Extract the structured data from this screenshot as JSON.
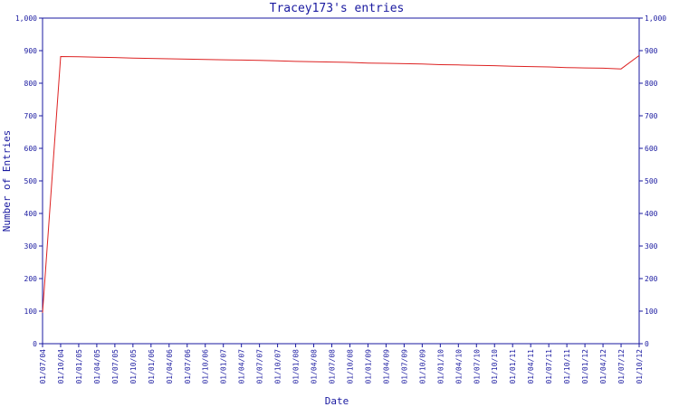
{
  "chart_data": {
    "type": "line",
    "title": "Tracey173's entries",
    "xlabel": "Date",
    "ylabel": "Number of Entries",
    "ylim": [
      0,
      1000
    ],
    "yticks": [
      "0",
      "100",
      "200",
      "300",
      "400",
      "500",
      "600",
      "700",
      "800",
      "900",
      "1,000"
    ],
    "yticks_right": [
      "0",
      "100",
      "200",
      "300",
      "400",
      "500",
      "600",
      "700",
      "800",
      "900",
      "1,000"
    ],
    "xticks": [
      "01/07/04",
      "01/10/04",
      "01/01/05",
      "01/04/05",
      "01/07/05",
      "01/10/05",
      "01/01/06",
      "01/04/06",
      "01/07/06",
      "01/10/06",
      "01/01/07",
      "01/04/07",
      "01/07/07",
      "01/10/07",
      "01/01/08",
      "01/04/08",
      "01/07/08",
      "01/10/08",
      "01/01/09",
      "01/04/09",
      "01/07/09",
      "01/10/09",
      "01/01/10",
      "01/04/10",
      "01/07/10",
      "01/10/10",
      "01/01/11",
      "01/04/11",
      "01/07/11",
      "01/10/11",
      "01/01/12",
      "01/04/12",
      "01/07/12",
      "01/10/12"
    ],
    "grid": false,
    "line_color": "#dd2222",
    "axis_color": "#1a1aa0",
    "series": [
      {
        "x": [
          "01/07/04",
          "01/10/04",
          "01/01/05",
          "01/04/05",
          "01/07/05",
          "01/10/05",
          "01/01/06",
          "01/04/06",
          "01/07/06",
          "01/10/06",
          "01/01/07",
          "01/04/07",
          "01/07/07",
          "01/10/07",
          "01/01/08",
          "01/04/08",
          "01/07/08",
          "01/10/08",
          "01/01/09",
          "01/04/09",
          "01/07/09",
          "01/10/09",
          "01/01/10",
          "01/04/10",
          "01/07/10",
          "01/10/10",
          "01/01/11",
          "01/04/11",
          "01/07/11",
          "01/10/11",
          "01/01/12",
          "01/04/12",
          "01/07/12",
          "01/10/12"
        ],
        "values": [
          95,
          882,
          881,
          880,
          879,
          877,
          876,
          875,
          874,
          873,
          872,
          871,
          870,
          869,
          867,
          866,
          865,
          864,
          862,
          861,
          860,
          859,
          857,
          856,
          855,
          854,
          852,
          851,
          850,
          848,
          847,
          846,
          844,
          885
        ]
      }
    ]
  }
}
